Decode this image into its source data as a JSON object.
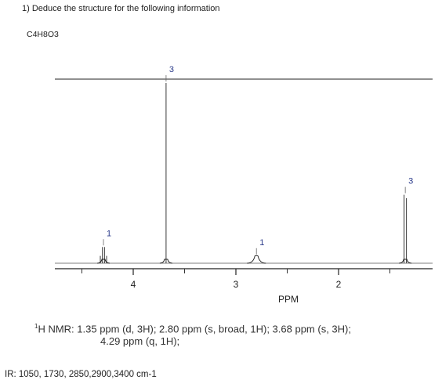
{
  "question": {
    "title": "1)  Deduce the structure for the following information",
    "formula": "C4H8O3"
  },
  "chart_data": {
    "type": "line",
    "title": "",
    "xlabel": "PPM",
    "ylabel": "",
    "xlim": [
      5.0,
      0.9
    ],
    "x_ticks": [
      4,
      3,
      2
    ],
    "tick_labels": [
      "4",
      "3",
      "2"
    ],
    "peaks": [
      {
        "shift": 4.29,
        "multiplicity": "q",
        "integration": "1",
        "height": 0.09
      },
      {
        "shift": 3.68,
        "multiplicity": "s",
        "integration": "3",
        "height": 1.0
      },
      {
        "shift": 2.8,
        "multiplicity": "s, broad",
        "integration": "1",
        "height": 0.04
      },
      {
        "shift": 1.35,
        "multiplicity": "d",
        "integration": "3",
        "height": 0.38
      }
    ]
  },
  "nmr": {
    "prefix_sup": "1",
    "line1": "H NMR: 1.35 ppm (d, 3H); 2.80 ppm (s, broad, 1H); 3.68 ppm (s, 3H);",
    "line2": "4.29 ppm (q, 1H);"
  },
  "ir": {
    "text": "IR: 1050, 1730, 2850,2900,3400 cm-1"
  }
}
